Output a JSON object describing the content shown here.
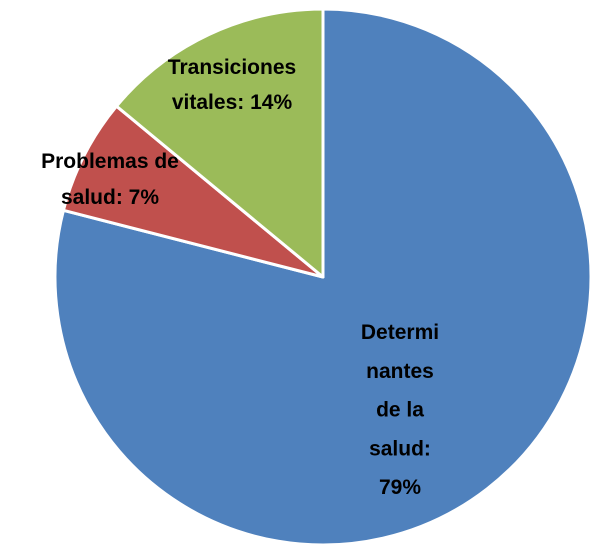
{
  "chart_data": {
    "type": "pie",
    "values": [
      79,
      7,
      14
    ],
    "value_labels": [
      [
        "Determi",
        "nantes",
        "de la",
        "salud:",
        "79%"
      ],
      [
        "Problemas de",
        "salud: 7%"
      ],
      [
        "Transiciones",
        "vitales: 14%"
      ]
    ],
    "colors": [
      "#4f81bd",
      "#c0504d",
      "#9bbb59"
    ],
    "start_angle": 0,
    "direction": "clockwise"
  }
}
